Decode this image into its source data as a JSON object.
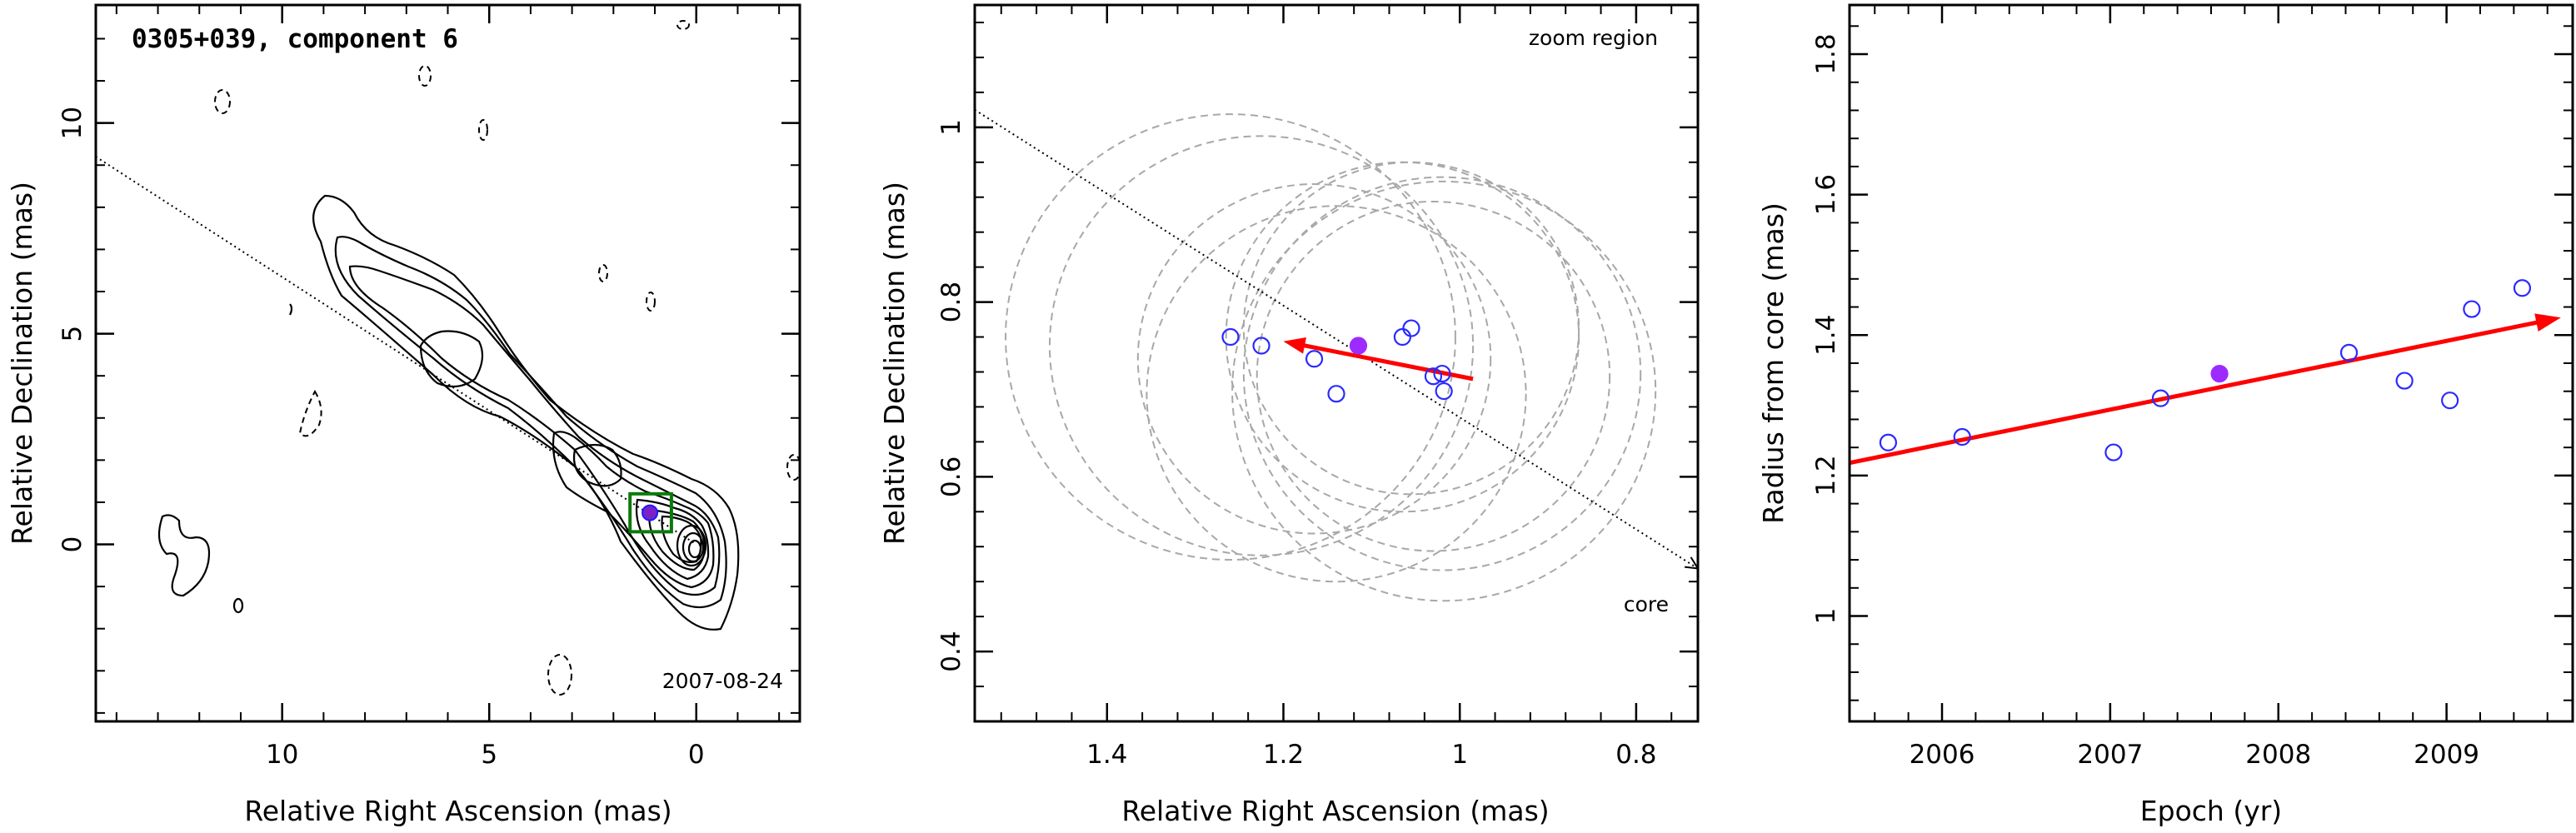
{
  "chart_data": [
    {
      "type": "scatter",
      "title": "0305+039, component 6",
      "date_label": "2007-08-24",
      "xlabel": "Relative Right Ascension (mas)",
      "ylabel": "Relative Declination (mas)",
      "xlim": [
        14.5,
        -2.5
      ],
      "ylim": [
        -4.2,
        12.8
      ],
      "xticks": [
        10,
        5,
        0
      ],
      "yticks": [
        0,
        5,
        10
      ],
      "direction_line": {
        "from": [
          14.5,
          9.2
        ],
        "to": [
          0,
          0
        ]
      },
      "zoom_box": {
        "x": [
          0.6,
          1.6
        ],
        "y": [
          0.3,
          1.2
        ]
      },
      "component": {
        "x": 1.12,
        "y": 0.75
      }
    },
    {
      "type": "scatter",
      "annotation": "zoom region",
      "core_label": "core",
      "xlabel": "Relative Right Ascension (mas)",
      "ylabel": "Relative Declination (mas)",
      "xlim": [
        1.55,
        0.73
      ],
      "ylim": [
        0.32,
        1.14
      ],
      "xticks": [
        1.4,
        1.2,
        1,
        0.8
      ],
      "yticks": [
        0.4,
        0.6,
        0.8,
        1
      ],
      "xtick_labels": [
        "1.4",
        "1.2",
        "1",
        "0.8"
      ],
      "ytick_labels": [
        "0.4",
        "0.6",
        "0.8",
        "1"
      ],
      "series": [
        {
          "marker": "open-circle",
          "color": "#2a2aff",
          "points": [
            [
              1.26,
              0.76
            ],
            [
              1.225,
              0.75
            ],
            [
              1.165,
              0.735
            ],
            [
              1.14,
              0.695
            ],
            [
              1.065,
              0.76
            ],
            [
              1.055,
              0.77
            ],
            [
              1.03,
              0.715
            ],
            [
              1.02,
              0.718
            ],
            [
              1.018,
              0.698
            ]
          ]
        },
        {
          "marker": "filled-circle",
          "color": "#9d2bff",
          "points": [
            [
              1.115,
              0.75
            ]
          ]
        }
      ],
      "beams": [
        {
          "cx": 1.26,
          "cy": 0.76,
          "r": 0.255
        },
        {
          "cx": 1.225,
          "cy": 0.75,
          "r": 0.24
        },
        {
          "cx": 1.165,
          "cy": 0.735,
          "r": 0.2
        },
        {
          "cx": 1.14,
          "cy": 0.695,
          "r": 0.215
        },
        {
          "cx": 1.065,
          "cy": 0.76,
          "r": 0.2
        },
        {
          "cx": 1.055,
          "cy": 0.77,
          "r": 0.19
        },
        {
          "cx": 1.03,
          "cy": 0.715,
          "r": 0.2
        },
        {
          "cx": 1.02,
          "cy": 0.718,
          "r": 0.225
        },
        {
          "cx": 1.018,
          "cy": 0.698,
          "r": 0.24
        }
      ],
      "vector": {
        "from": [
          0.985,
          0.712
        ],
        "to": [
          1.2,
          0.755
        ],
        "color": "#ff0000"
      },
      "direction_line": {
        "from": [
          1.55,
          1.02
        ],
        "to": [
          0.73,
          0.495
        ]
      }
    },
    {
      "type": "scatter",
      "xlabel": "Epoch (yr)",
      "ylabel": "Radius from core (mas)",
      "xlim": [
        2005.45,
        2009.75
      ],
      "ylim": [
        0.85,
        1.87
      ],
      "xticks": [
        2006,
        2007,
        2008,
        2009
      ],
      "yticks": [
        1,
        1.2,
        1.4,
        1.6,
        1.8
      ],
      "xtick_labels": [
        "2006",
        "2007",
        "2008",
        "2009"
      ],
      "ytick_labels": [
        "1",
        "1.2",
        "1.4",
        "1.6",
        "1.8"
      ],
      "series": [
        {
          "marker": "open-circle",
          "color": "#2a2aff",
          "points": [
            [
              2005.68,
              1.247
            ],
            [
              2006.12,
              1.255
            ],
            [
              2007.02,
              1.233
            ],
            [
              2007.3,
              1.31
            ],
            [
              2008.42,
              1.375
            ],
            [
              2008.75,
              1.335
            ],
            [
              2009.02,
              1.307
            ],
            [
              2009.15,
              1.437
            ],
            [
              2009.45,
              1.467
            ]
          ]
        },
        {
          "marker": "filled-circle",
          "color": "#9d2bff",
          "points": [
            [
              2007.65,
              1.345
            ]
          ]
        }
      ],
      "fit": {
        "from": [
          2005.45,
          1.218
        ],
        "to": [
          2009.68,
          1.425
        ],
        "color": "#ff0000"
      }
    }
  ]
}
